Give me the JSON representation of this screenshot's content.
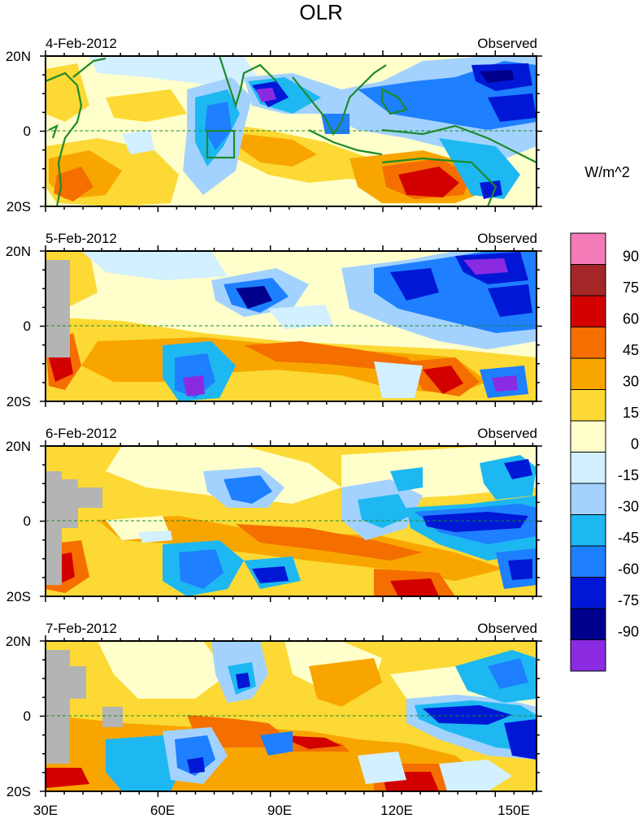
{
  "figure": {
    "title": "OLR",
    "units": "W/m^2"
  },
  "axes": {
    "lat_labels": [
      "20N",
      "0",
      "20S"
    ],
    "lon_labels": [
      "30E",
      "60E",
      "90E",
      "120E",
      "150E"
    ]
  },
  "panels": [
    {
      "date": "4-Feb-2012",
      "tag": "Observed"
    },
    {
      "date": "5-Feb-2012",
      "tag": "Observed"
    },
    {
      "date": "6-Feb-2012",
      "tag": "Observed"
    },
    {
      "date": "7-Feb-2012",
      "tag": "Observed"
    }
  ],
  "colorbar": {
    "labels": [
      "90",
      "75",
      "60",
      "45",
      "30",
      "15",
      "0",
      "-15",
      "-30",
      "-45",
      "-60",
      "-75",
      "-90"
    ],
    "colors": [
      "#f47ab8",
      "#a52626",
      "#d30000",
      "#f46e00",
      "#f9a500",
      "#fcd935",
      "#ffffcc",
      "#d2f0ff",
      "#a3d2ff",
      "#1db8f2",
      "#1e7fff",
      "#0018d6",
      "#00008c",
      "#8a2be2"
    ]
  },
  "palette": {
    "coast": "#1d8a2a",
    "land_missing": "#b4b4b4",
    "equator": "#1d8a2a"
  }
}
